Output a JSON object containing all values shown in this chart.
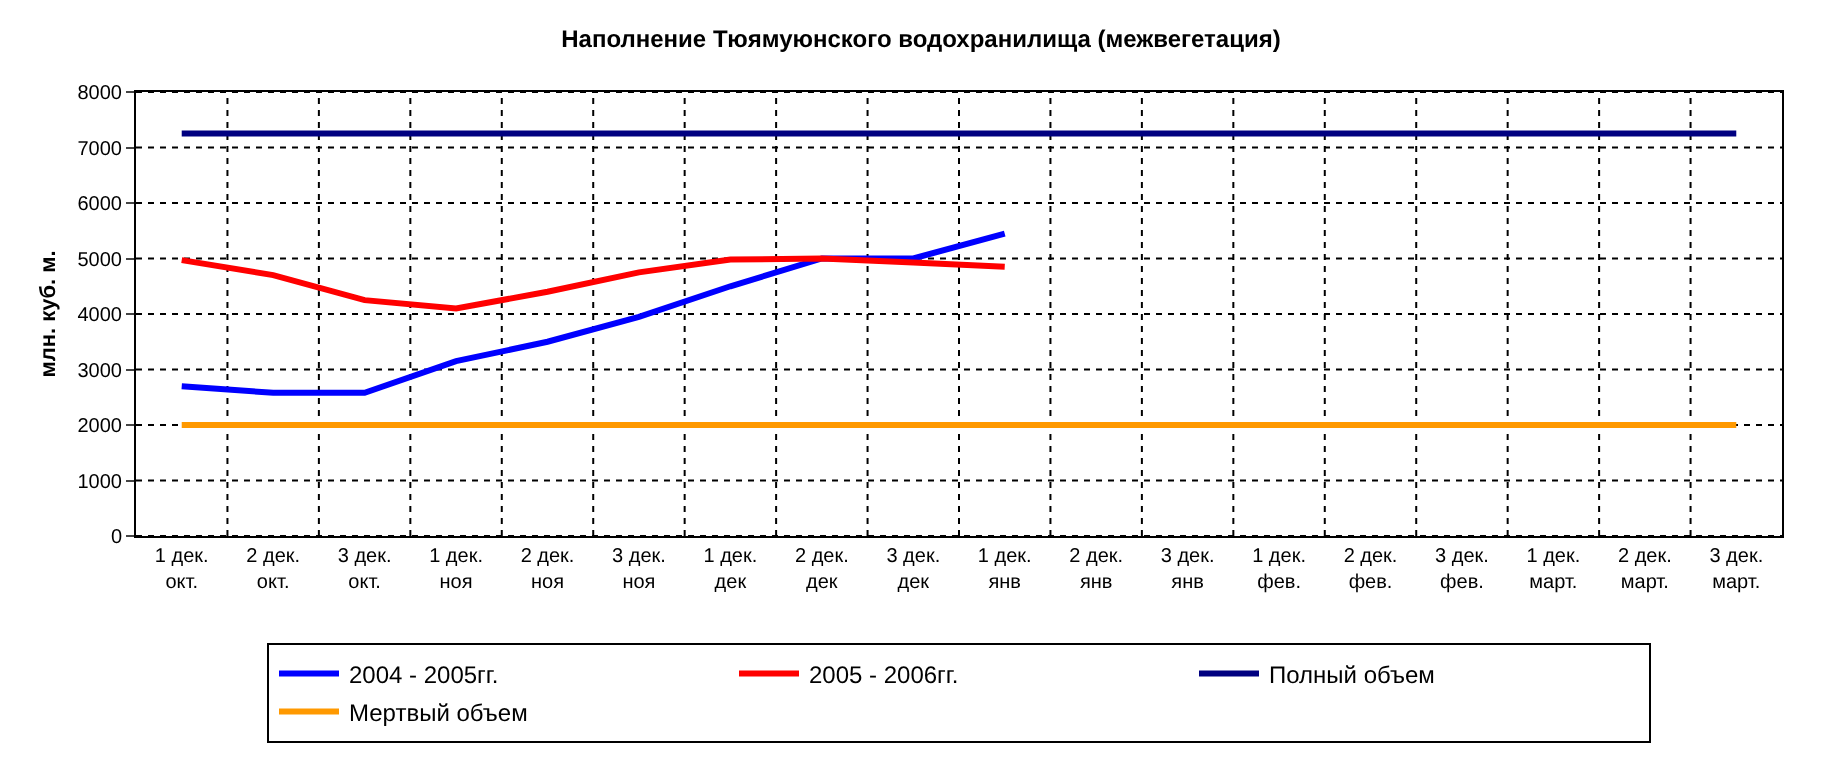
{
  "chart_data": {
    "type": "line",
    "title": "Наполнение Тюямуюнского водохранилища (межвегетация)",
    "ylabel": "млн. куб. м.",
    "categories": [
      "1 дек.\nокт.",
      "2 дек.\nокт.",
      "3 дек.\nокт.",
      "1 дек.\nноя",
      "2 дек.\nноя",
      "3 дек.\nноя",
      "1 дек.\nдек",
      "2 дек.\nдек",
      "3 дек.\nдек",
      "1 дек.\nянв",
      "2 дек.\nянв",
      "3 дек.\nянв",
      "1 дек.\nфев.",
      "2 дек.\nфев.",
      "3 дек.\nфев.",
      "1 дек.\nмарт.",
      "2 дек.\nмарт.",
      "3 дек.\nмарт."
    ],
    "series": [
      {
        "name": "2004 - 2005гг.",
        "color": "#0000ff",
        "values": [
          2700,
          2580,
          2580,
          3150,
          3500,
          3950,
          4500,
          5000,
          5000,
          5450,
          null,
          null,
          null,
          null,
          null,
          null,
          null,
          null
        ]
      },
      {
        "name": "2005 - 2006гг.",
        "color": "#ff0000",
        "values": [
          4970,
          4700,
          4250,
          4100,
          4400,
          4750,
          4980,
          5000,
          4930,
          4850,
          null,
          null,
          null,
          null,
          null,
          null,
          null,
          null
        ]
      },
      {
        "name": "Полный объем",
        "color": "#000080",
        "values": [
          7250,
          7250,
          7250,
          7250,
          7250,
          7250,
          7250,
          7250,
          7250,
          7250,
          7250,
          7250,
          7250,
          7250,
          7250,
          7250,
          7250,
          7250
        ]
      },
      {
        "name": "Мертвый объем",
        "color": "#ff9900",
        "values": [
          2000,
          2000,
          2000,
          2000,
          2000,
          2000,
          2000,
          2000,
          2000,
          2000,
          2000,
          2000,
          2000,
          2000,
          2000,
          2000,
          2000,
          2000
        ]
      }
    ],
    "ylim": [
      0,
      8000
    ],
    "yticks": [
      0,
      1000,
      2000,
      3000,
      4000,
      5000,
      6000,
      7000,
      8000
    ],
    "grid": true,
    "legend": "bottom",
    "marker": "none",
    "line_style": "solid"
  }
}
